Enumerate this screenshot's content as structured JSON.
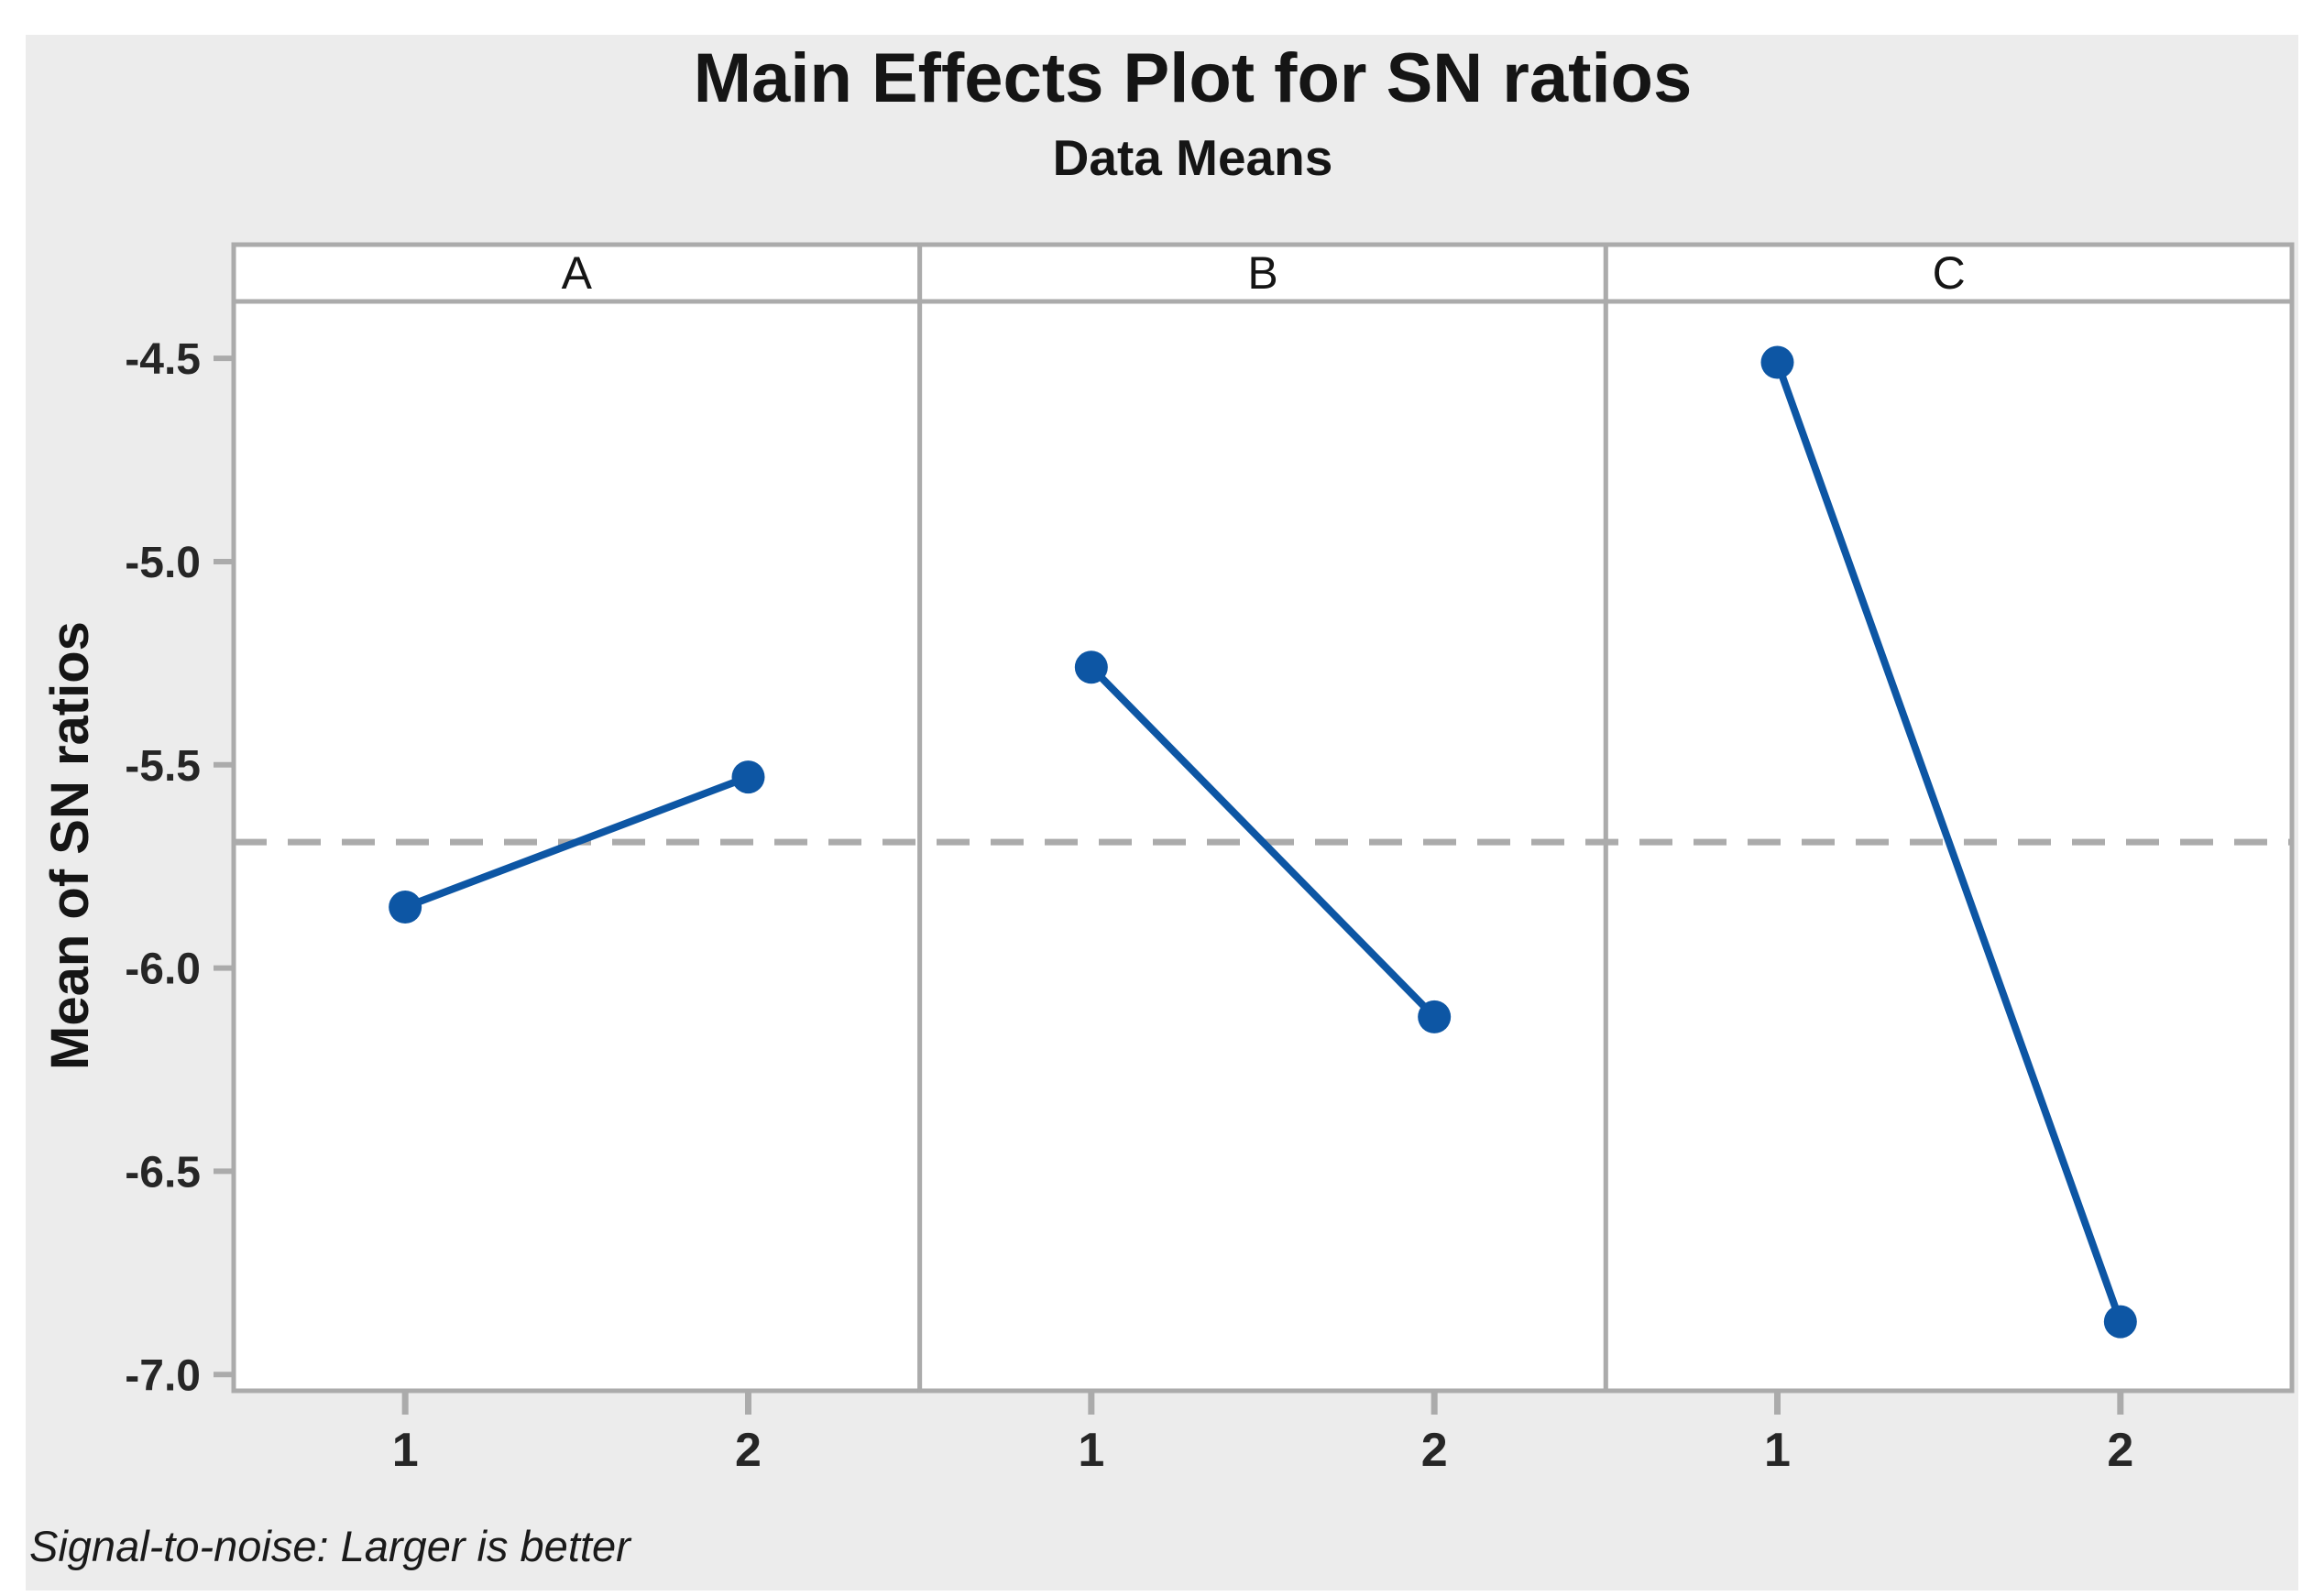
{
  "figure": {
    "title": "Main Effects Plot for SN ratios",
    "subtitle": "Data Means",
    "y_axis_title": "Mean of SN ratios",
    "footnote": "Signal-to-noise: Larger is better"
  },
  "chart_data": {
    "type": "line",
    "title": "Main Effects Plot for SN ratios",
    "subtitle": "Data Means",
    "ylabel": "Mean of SN ratios",
    "xticklabels": [
      "1",
      "2"
    ],
    "panels": [
      {
        "label": "A",
        "levels": [
          1,
          2
        ],
        "values": [
          -5.85,
          -5.53
        ]
      },
      {
        "label": "B",
        "levels": [
          1,
          2
        ],
        "values": [
          -5.26,
          -6.12
        ]
      },
      {
        "label": "C",
        "levels": [
          1,
          2
        ],
        "values": [
          -4.51,
          -6.87
        ]
      }
    ],
    "grand_mean": -5.69,
    "yticks": [
      -4.5,
      -5.0,
      -5.5,
      -6.0,
      -6.5,
      -7.0
    ],
    "ylim": [
      -7.04,
      -4.36
    ],
    "grid": false,
    "legend": "none",
    "footnote": "Signal-to-noise: Larger is better",
    "colors": {
      "line": "#0D56A4",
      "reference_line": "#ABABAB",
      "panel_border": "#ABABAB",
      "figure_background": "#ECECEC",
      "panel_background": "#FFFFFF",
      "text": "#262626"
    }
  }
}
